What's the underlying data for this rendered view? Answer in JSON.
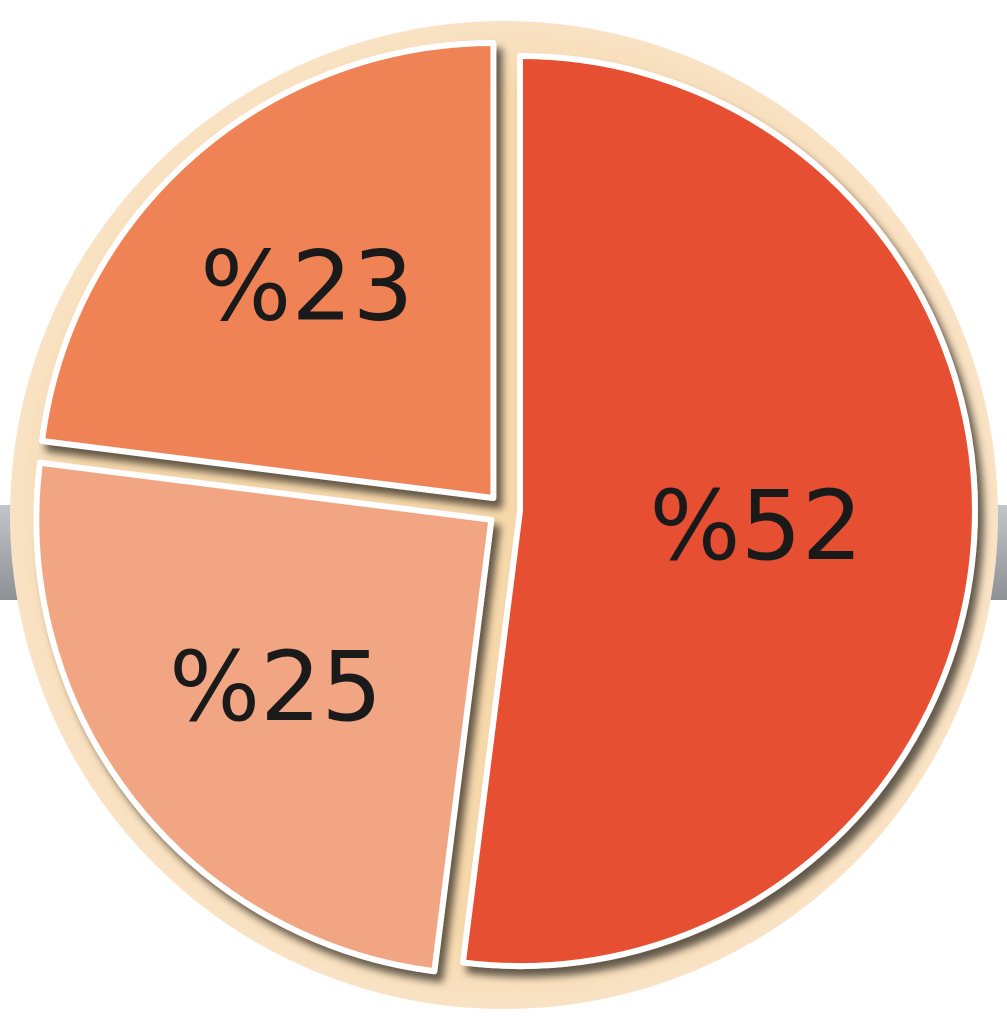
{
  "chart_data": {
    "type": "pie",
    "title": "",
    "slices": [
      {
        "label": "%52",
        "value": 52,
        "color": "#e64f33"
      },
      {
        "label": "%25",
        "value": 25,
        "color": "#f1a582"
      },
      {
        "label": "%23",
        "value": 23,
        "color": "#f08354"
      }
    ]
  },
  "colors": {
    "ring": "#f7d8ab",
    "band": "#a7aaae",
    "separator": "#ffffff",
    "text": "#1a1a1a"
  }
}
